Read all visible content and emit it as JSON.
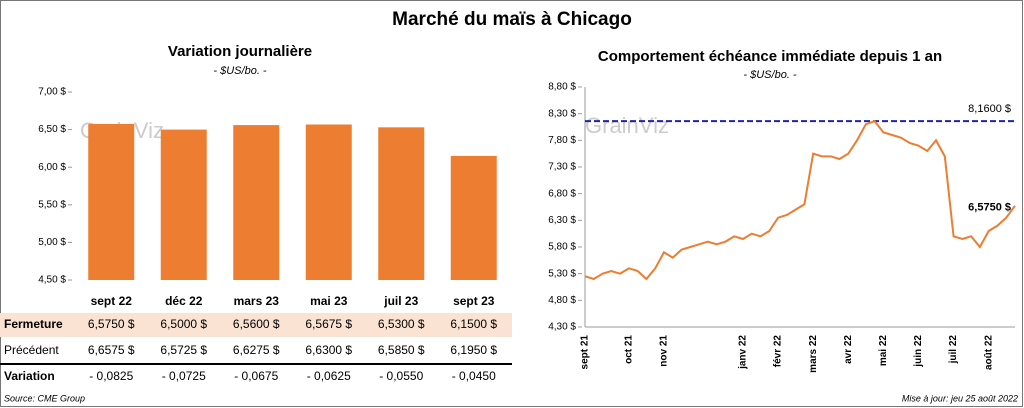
{
  "title": "Marché du maïs à Chicago",
  "watermark": "GrainViz",
  "source": "Source: CME Group",
  "updated": "Mise à jour: jeu 25 août 2022",
  "chart_data": [
    {
      "type": "bar",
      "title": "Variation journalière",
      "subtitle": "- $US/bo. -",
      "categories": [
        "sept 22",
        "déc 22",
        "mars 23",
        "mai 23",
        "juil 23",
        "sept 23"
      ],
      "values": [
        6.575,
        6.5,
        6.56,
        6.5675,
        6.53,
        6.15
      ],
      "value_labels": [
        "6,5750 $",
        "6,5000 $",
        "6,5600 $",
        "6,5675 $",
        "6,5300 $",
        "6,1500 $"
      ],
      "color": "#ed7d31",
      "ylim": [
        4.5,
        7.0
      ],
      "yticks": [
        {
          "value": 4.5,
          "label": "4,50 $"
        },
        {
          "value": 5.0,
          "label": "5,00 $"
        },
        {
          "value": 5.5,
          "label": "5,50 $"
        },
        {
          "value": 6.0,
          "label": "6,00 $"
        },
        {
          "value": 6.5,
          "label": "6,50 $"
        },
        {
          "value": 7.0,
          "label": "7,00 $"
        }
      ],
      "table": {
        "row_labels": [
          "Fermeture",
          "Précédent",
          "Variation"
        ],
        "previous": [
          "6,6575 $",
          "6,5725 $",
          "6,6275 $",
          "6,6300 $",
          "6,5850 $",
          "6,1950 $"
        ],
        "change": [
          "- 0,0825",
          "- 0,0725",
          "- 0,0675",
          "- 0,0625",
          "- 0,0550",
          "- 0,0450"
        ]
      }
    },
    {
      "type": "line",
      "title": "Comportement  échéance immédiate depuis 1 an",
      "subtitle": "- $US/bo. -",
      "categories": [
        "sept 21",
        null,
        null,
        null,
        null,
        "oct 21",
        null,
        null,
        null,
        "nov 21",
        null,
        null,
        null,
        null,
        null,
        null,
        null,
        null,
        "janv 22",
        null,
        null,
        null,
        "févr 22",
        null,
        null,
        null,
        "mars 22",
        null,
        null,
        null,
        "avr 22",
        null,
        null,
        null,
        "mai 22",
        null,
        null,
        null,
        "juin 22",
        null,
        null,
        null,
        "juil 22",
        null,
        null,
        null,
        "août 22",
        null,
        null,
        null
      ],
      "series": [
        {
          "name": "Échéance immédiate",
          "color": "#ed7d31",
          "values": [
            5.25,
            5.2,
            5.3,
            5.35,
            5.3,
            5.4,
            5.35,
            5.2,
            5.4,
            5.7,
            5.6,
            5.75,
            5.8,
            5.85,
            5.9,
            5.85,
            5.9,
            6.0,
            5.95,
            6.05,
            6.0,
            6.1,
            6.35,
            6.4,
            6.5,
            6.6,
            7.55,
            7.5,
            7.5,
            7.45,
            7.55,
            7.8,
            8.1,
            8.16,
            7.95,
            7.9,
            7.85,
            7.75,
            7.7,
            7.6,
            7.8,
            7.5,
            6.0,
            5.95,
            6.0,
            5.8,
            6.1,
            6.2,
            6.35,
            6.575
          ]
        }
      ],
      "annotations": [
        {
          "value": 8.16,
          "label": "8,1600 $",
          "color": "#2222aa"
        },
        {
          "value": 6.575,
          "label": "6,5750 $",
          "color": "#000000"
        }
      ],
      "ylim": [
        4.3,
        8.8
      ],
      "yticks": [
        {
          "value": 4.3,
          "label": "4,30 $"
        },
        {
          "value": 4.8,
          "label": "4,80 $"
        },
        {
          "value": 5.3,
          "label": "5,30 $"
        },
        {
          "value": 5.8,
          "label": "5,80 $"
        },
        {
          "value": 6.3,
          "label": "6,30 $"
        },
        {
          "value": 6.8,
          "label": "6,80 $"
        },
        {
          "value": 7.3,
          "label": "7,30 $"
        },
        {
          "value": 7.8,
          "label": "7,80 $"
        },
        {
          "value": 8.3,
          "label": "8,30 $"
        },
        {
          "value": 8.8,
          "label": "8,80 $"
        }
      ]
    }
  ]
}
